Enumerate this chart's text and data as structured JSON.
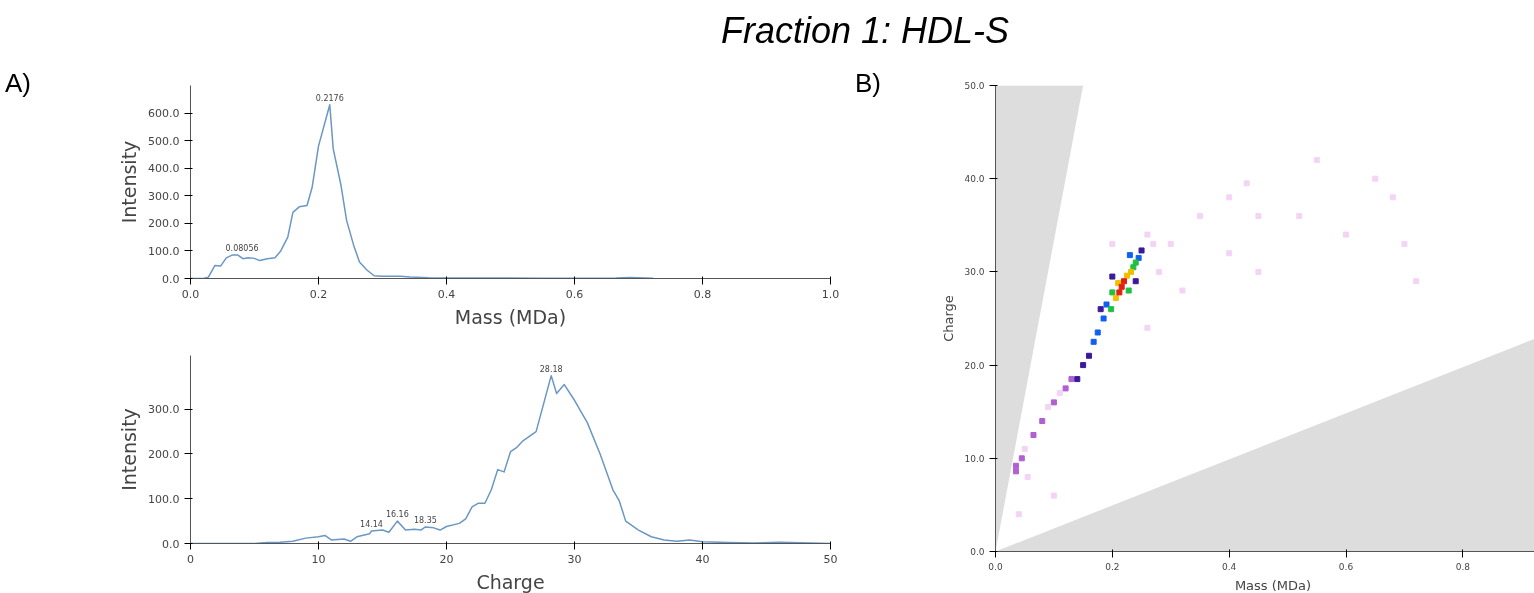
{
  "chart_data": [
    {
      "type": "line",
      "title": "Fraction 1: HDL-S",
      "xlabel": "Mass (MDa)",
      "ylabel": "Intensity",
      "marker": "none",
      "grid": false,
      "annotations": [
        "A)",
        {
          "text": "0.2176",
          "x": 0.2176,
          "y": 630
        },
        {
          "text": "0.08056",
          "x": 0.08056,
          "y": 85
        }
      ],
      "xlim": [
        0,
        1.0
      ],
      "ylim": [
        0,
        700
      ],
      "xticks": [
        {
          "value": 0,
          "label": "0.0"
        },
        {
          "value": 0.2,
          "label": "0.2"
        },
        {
          "value": 0.4,
          "label": "0.4"
        },
        {
          "value": 0.6,
          "label": "0.6"
        },
        {
          "value": 0.8,
          "label": "0.8"
        },
        {
          "value": 1.0,
          "label": "1.0"
        }
      ],
      "yticks": [
        {
          "value": 0,
          "label": "0.0"
        },
        {
          "value": 100,
          "label": "100.0"
        },
        {
          "value": 200,
          "label": "200.0"
        },
        {
          "value": 300,
          "label": "300.0"
        },
        {
          "value": 400,
          "label": "400.0"
        },
        {
          "value": 500,
          "label": "500.0"
        },
        {
          "value": 600,
          "label": "600.0"
        }
      ],
      "series": [
        {
          "color": "#6a97c4",
          "x": [
            0,
            0.02,
            0.028,
            0.038,
            0.047,
            0.056,
            0.065,
            0.074,
            0.082,
            0.09,
            0.1,
            0.108,
            0.12,
            0.132,
            0.141,
            0.152,
            0.16,
            0.17,
            0.182,
            0.19,
            0.2,
            0.2176,
            0.223,
            0.235,
            0.244,
            0.255,
            0.264,
            0.276,
            0.287,
            0.299,
            0.328,
            0.343,
            0.372,
            0.446,
            0.548,
            0.665,
            0.686,
            0.723
          ],
          "values": [
            0,
            0,
            5,
            47,
            45,
            75,
            85,
            85,
            72,
            75,
            73,
            65,
            72,
            75,
            100,
            150,
            240,
            260,
            265,
            330,
            480,
            630,
            470,
            340,
            210,
            120,
            60,
            30,
            10,
            8,
            8,
            5,
            3,
            2,
            1,
            2,
            4,
            1
          ]
        }
      ]
    },
    {
      "type": "line",
      "xlabel": "Charge",
      "ylabel": "Intensity",
      "marker": "none",
      "grid": false,
      "annotations": [
        {
          "text": "28.18",
          "x": 28.18,
          "y": 375
        },
        {
          "text": "14.14",
          "x": 14.14,
          "y": 28
        },
        {
          "text": "16.16",
          "x": 16.16,
          "y": 50
        },
        {
          "text": "18.35",
          "x": 18.35,
          "y": 37
        }
      ],
      "xlim": [
        0,
        50
      ],
      "ylim": [
        0,
        420
      ],
      "xticks": [
        0,
        10,
        20,
        30,
        40,
        50
      ],
      "yticks": [
        {
          "value": 0,
          "label": "0.0"
        },
        {
          "value": 100,
          "label": "100.0"
        },
        {
          "value": 200,
          "label": "200.0"
        },
        {
          "value": 300,
          "label": "300.0"
        }
      ],
      "series": [
        {
          "color": "#6a97c4",
          "x": [
            0,
            5,
            6,
            7,
            8,
            9,
            10,
            10.5,
            11,
            12,
            12.5,
            13,
            14,
            14.14,
            15,
            15.5,
            16.16,
            16.8,
            17.5,
            18,
            18.35,
            19,
            19.5,
            20,
            21,
            21.5,
            22,
            22.5,
            23,
            23.5,
            24,
            24.5,
            25,
            25.5,
            26,
            27,
            28.18,
            28.6,
            29.2,
            30,
            31,
            32,
            33,
            33.5,
            34,
            35,
            36,
            37,
            38,
            39,
            40,
            42,
            44,
            46,
            50
          ],
          "values": [
            0,
            0,
            2,
            3,
            5,
            12,
            15,
            18,
            8,
            10,
            5,
            15,
            22,
            28,
            30,
            25,
            50,
            30,
            32,
            30,
            37,
            35,
            30,
            38,
            45,
            55,
            82,
            90,
            90,
            120,
            165,
            160,
            205,
            215,
            230,
            250,
            375,
            335,
            355,
            320,
            270,
            200,
            120,
            95,
            50,
            30,
            15,
            8,
            5,
            8,
            4,
            2,
            1,
            3,
            0
          ]
        }
      ]
    },
    {
      "type": "scatter",
      "xlabel": "Mass (MDa)",
      "ylabel": "Charge",
      "grid": false,
      "annotations": [
        "B)"
      ],
      "xlim": [
        0,
        0.95
      ],
      "ylim": [
        0,
        50
      ],
      "xticks": [
        {
          "value": 0,
          "label": "0.0"
        },
        {
          "value": 0.2,
          "label": "0.2"
        },
        {
          "value": 0.4,
          "label": "0.4"
        },
        {
          "value": 0.6,
          "label": "0.6"
        },
        {
          "value": 0.8,
          "label": "0.8"
        }
      ],
      "yticks": [
        {
          "value": 0,
          "label": "0.0"
        },
        {
          "value": 10,
          "label": "10.0"
        },
        {
          "value": 20,
          "label": "20.0"
        },
        {
          "value": 30,
          "label": "30.0"
        },
        {
          "value": 40,
          "label": "40.0"
        },
        {
          "value": 50,
          "label": "50.0"
        }
      ],
      "series": [
        {
          "type": "area",
          "color": "#dddddd",
          "x": [
            0,
            0.15
          ],
          "values": [
            0,
            50
          ]
        },
        {
          "type": "area",
          "color": "#dddddd",
          "x": [
            0,
            0.95
          ],
          "values": [
            0,
            23.5
          ]
        },
        {
          "marker": "square",
          "color": "#f4d4f4",
          "x": [
            0.05,
            0.09,
            0.11,
            0.055,
            0.27,
            0.26,
            0.3,
            0.35,
            0.4,
            0.43,
            0.45,
            0.4,
            0.32,
            0.26,
            0.28,
            0.55,
            0.6,
            0.68,
            0.7,
            0.2,
            0.1,
            0.04,
            0.65,
            0.52,
            0.72,
            0.45
          ],
          "values": [
            11,
            15.5,
            17,
            8,
            33,
            34,
            33,
            36,
            38,
            39.5,
            36,
            32,
            28,
            24,
            30,
            42,
            34,
            38,
            33,
            33,
            6,
            4,
            40,
            36,
            29,
            30
          ]
        },
        {
          "marker": "square",
          "color": "#b060d0",
          "x": [
            0.065,
            0.08,
            0.1,
            0.12,
            0.13,
            0.045,
            0.035,
            0.035
          ],
          "values": [
            12.5,
            14,
            16,
            17.5,
            18.5,
            10,
            9.2,
            8.6
          ]
        },
        {
          "marker": "square",
          "color": "#3a1a9a",
          "x": [
            0.16,
            0.15,
            0.25,
            0.2,
            0.18,
            0.24,
            0.14
          ],
          "values": [
            21,
            20,
            32.3,
            29.5,
            26.0,
            29.0,
            18.5
          ]
        },
        {
          "marker": "square",
          "color": "#1060f0",
          "x": [
            0.175,
            0.185,
            0.245,
            0.19,
            0.168,
            0.23
          ],
          "values": [
            23.5,
            25.0,
            31.5,
            26.5,
            22.5,
            31.8
          ]
        },
        {
          "marker": "square",
          "color": "#20c040",
          "x": [
            0.198,
            0.236,
            0.2,
            0.228,
            0.24
          ],
          "values": [
            26.0,
            30.5,
            27.8,
            28.0,
            31.0
          ]
        },
        {
          "marker": "square",
          "color": "#f0c000",
          "x": [
            0.206,
            0.225,
            0.232,
            0.21
          ],
          "values": [
            27.2,
            29.6,
            30.0,
            28.8
          ]
        },
        {
          "marker": "square",
          "color": "#e02010",
          "x": [
            0.216,
            0.22,
            0.212
          ],
          "values": [
            28.4,
            29.0,
            27.8
          ]
        }
      ]
    }
  ]
}
